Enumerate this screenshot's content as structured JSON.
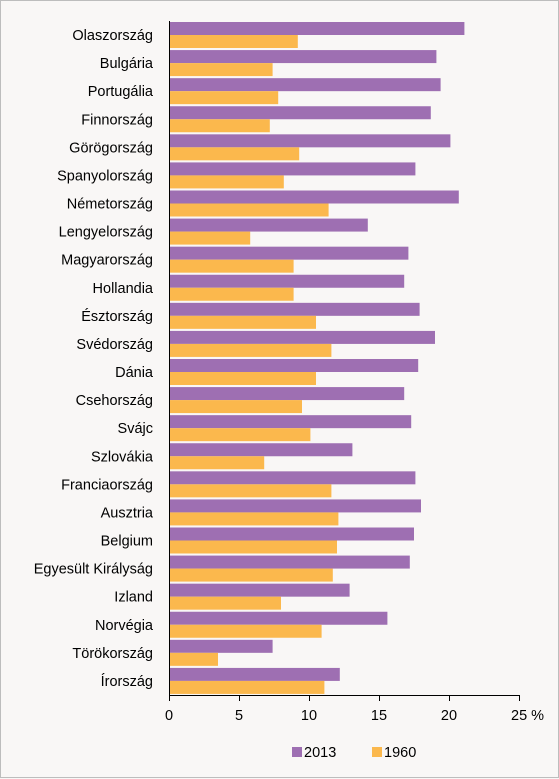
{
  "chart_data": {
    "type": "bar",
    "orientation": "horizontal",
    "title": "",
    "xlabel": "",
    "ylabel": "",
    "unit": "%",
    "xlim": [
      0,
      25
    ],
    "xticks": [
      "0",
      "5",
      "10",
      "15",
      "20",
      "25 %"
    ],
    "legend_position": "bottom",
    "grid": false,
    "categories": [
      "Olaszország",
      "Bulgária",
      "Portugália",
      "Finnország",
      "Görögország",
      "Spanyolország",
      "Németország",
      "Lengyelország",
      "Magyarország",
      "Hollandia",
      "Észtország",
      "Svédország",
      "Dánia",
      "Csehország",
      "Svájc",
      "Szlovákia",
      "Franciaország",
      "Ausztria",
      "Belgium",
      "Egyesült Királyság",
      "Izland",
      "Norvégia",
      "Törökország",
      "Írország"
    ],
    "series": [
      {
        "name": "2013",
        "color": "#9e6fb2",
        "values": [
          21.1,
          19.1,
          19.4,
          18.7,
          20.1,
          17.6,
          20.7,
          14.2,
          17.1,
          16.8,
          17.9,
          19.0,
          17.8,
          16.8,
          17.3,
          13.1,
          17.6,
          18.0,
          17.5,
          17.2,
          12.9,
          15.6,
          7.4,
          12.2
        ]
      },
      {
        "name": "1960",
        "color": "#fbb84d",
        "values": [
          9.2,
          7.4,
          7.8,
          7.2,
          9.3,
          8.2,
          11.4,
          5.8,
          8.9,
          8.9,
          10.5,
          11.6,
          10.5,
          9.5,
          10.1,
          6.8,
          11.6,
          12.1,
          12.0,
          11.7,
          8.0,
          10.9,
          3.5,
          11.1
        ]
      }
    ]
  }
}
